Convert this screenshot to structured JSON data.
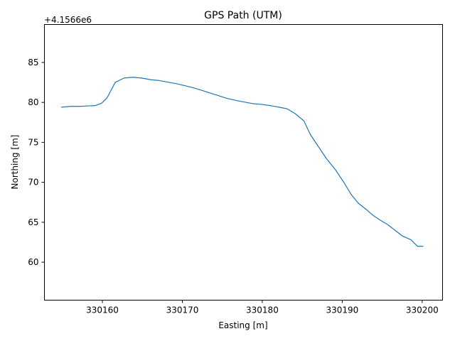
{
  "chart_data": {
    "type": "line",
    "title": "GPS Path (UTM)",
    "xlabel": "Easting [m]",
    "ylabel": "Northing [m]",
    "y_offset_label": "+4.1566e6",
    "xlim": [
      330152.75,
      330202.55
    ],
    "ylim": [
      55.25,
      89.75
    ],
    "x_ticks": [
      330160,
      330170,
      330180,
      330190,
      330200
    ],
    "x_tick_labels": [
      "330160",
      "330170",
      "330180",
      "330190",
      "330200"
    ],
    "y_ticks": [
      60,
      65,
      70,
      75,
      80,
      85
    ],
    "y_tick_labels": [
      "60",
      "65",
      "70",
      "75",
      "80",
      "85"
    ],
    "grid": false,
    "line_color": "#1f77b4",
    "series": [
      {
        "x": [
          330154.9,
          330156.0,
          330157.1,
          330158.1,
          330159.1,
          330159.9,
          330160.6,
          330161.6,
          330162.7,
          330163.8,
          330164.9,
          330166.0,
          330167.0,
          330168.1,
          330169.2,
          330170.3,
          330171.3,
          330172.3,
          330173.4,
          330174.5,
          330175.6,
          330176.7,
          330177.7,
          330178.8,
          330179.9,
          330181.0,
          330182.1,
          330183.1,
          330184.1,
          330185.2,
          330186.0,
          330187.0,
          330188.0,
          330189.2,
          330190.2,
          330191.1,
          330192.0,
          330193.0,
          330193.8,
          330194.7,
          330195.7,
          330196.6,
          330197.5,
          330198.6,
          330199.4,
          330200.1
        ],
        "y": [
          79.4,
          79.5,
          79.5,
          79.55,
          79.6,
          79.9,
          80.6,
          82.5,
          83.05,
          83.15,
          83.05,
          82.85,
          82.75,
          82.55,
          82.35,
          82.1,
          81.85,
          81.55,
          81.2,
          80.85,
          80.5,
          80.25,
          80.05,
          79.85,
          79.75,
          79.6,
          79.4,
          79.2,
          78.6,
          77.7,
          76.0,
          74.5,
          73.0,
          71.5,
          70.0,
          68.5,
          67.4,
          66.6,
          65.9,
          65.3,
          64.7,
          64.0,
          63.3,
          62.8,
          62.0,
          62.0
        ],
        "y_note": ""
      }
    ]
  }
}
